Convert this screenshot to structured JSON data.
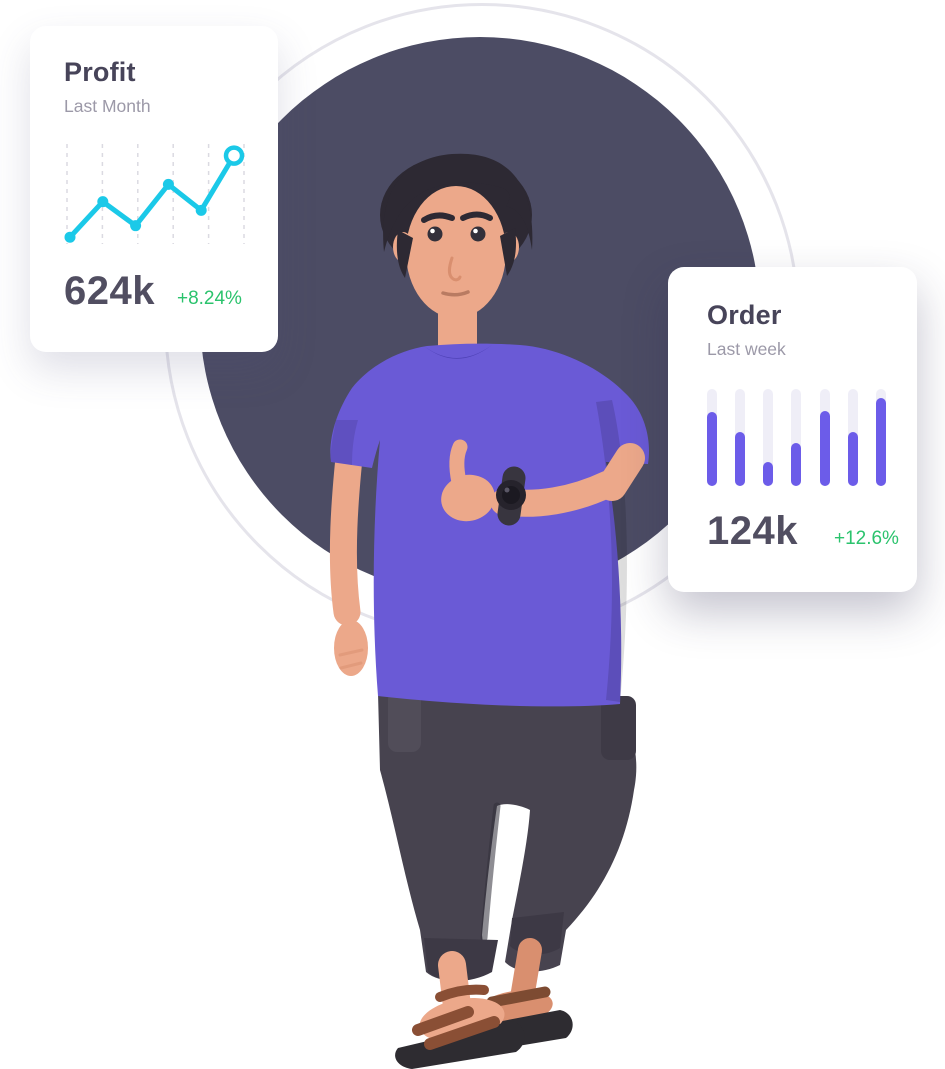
{
  "scene": {
    "background_circle_color": "#4C4C64",
    "ring_color": "#E5E4EB",
    "card_background": "#FFFFFF",
    "accent_green": "#2BC36D",
    "accent_cyan": "#1BC9E8",
    "accent_purple": "#6C5CE9"
  },
  "profit_card": {
    "title": "Profit",
    "subtitle": "Last Month",
    "value": "624k",
    "change": "+8.24%"
  },
  "order_card": {
    "title": "Order",
    "subtitle": "Last week",
    "value": "124k",
    "change": "+12.6%"
  },
  "illustration": {
    "description": "3D man with dark hair, purple t-shirt, dark jogger pants, black wristwatch and brown sandals giving a thumbs-up",
    "shirt_color": "#6A5AD6",
    "pants_color": "#47434F",
    "hair_color": "#2D2933",
    "skin_color": "#ECA88A",
    "sandal_strap_color": "#8A4F35"
  },
  "chart_data": [
    {
      "type": "line",
      "title": "Profit",
      "subtitle": "Last Month",
      "x": [
        1,
        2,
        3,
        4,
        5,
        6
      ],
      "values": [
        5,
        42,
        17,
        60,
        33,
        90
      ],
      "unit": "relative height 0-100 (unlabeled sparkline)",
      "summary_value": "624k",
      "change": "+8.24%",
      "line_color": "#1BC9E8",
      "grid": "6 dashed vertical gridlines, no axis labels",
      "last_point_style": "open ring marker"
    },
    {
      "type": "bar",
      "title": "Order",
      "subtitle": "Last week",
      "categories": [
        "1",
        "2",
        "3",
        "4",
        "5",
        "6",
        "7"
      ],
      "values": [
        76,
        55,
        24,
        44,
        77,
        55,
        90
      ],
      "unit": "percent of track height (unlabeled sparkline)",
      "summary_value": "124k",
      "change": "+12.6%",
      "bar_color": "#6C5CE9",
      "track_color": "#EFEEF7"
    }
  ]
}
